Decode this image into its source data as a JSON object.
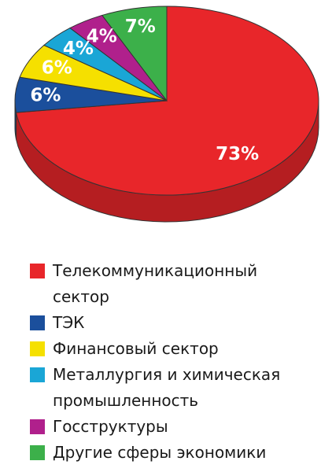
{
  "chart_data": {
    "type": "pie",
    "categories": [
      "Телекоммуникационный сектор",
      "ТЭК",
      "Финансовый сектор",
      "Металлургия и химическая промышленность",
      "Госструктуры",
      "Другие сферы экономики"
    ],
    "values": [
      73,
      6,
      6,
      4,
      4,
      7
    ],
    "value_labels": [
      "73%",
      "6%",
      "6%",
      "4%",
      "4%",
      "7%"
    ],
    "colors": [
      "#e8262a",
      "#1b4f9c",
      "#f5e000",
      "#1aa6d6",
      "#b0208c",
      "#3cb04a"
    ]
  }
}
